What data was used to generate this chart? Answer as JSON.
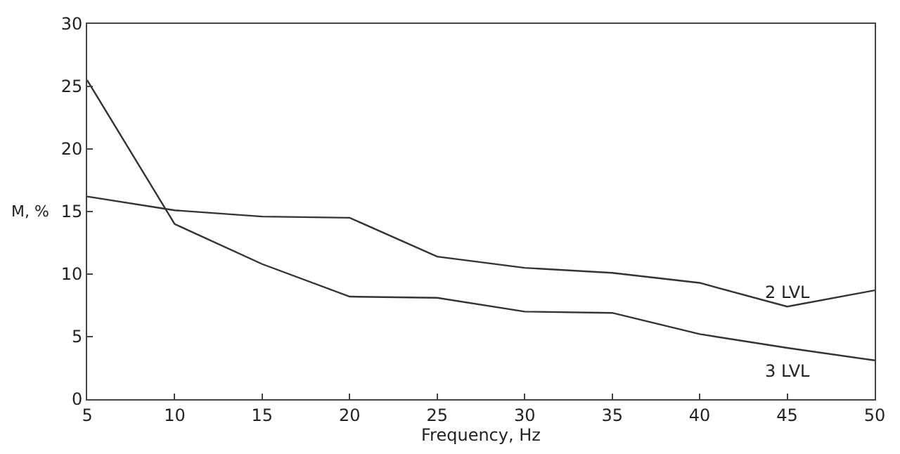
{
  "chart_data": {
    "type": "line",
    "xlabel": "Frequency, Hz",
    "ylabel": "M, %",
    "x": [
      5,
      10,
      15,
      20,
      25,
      30,
      35,
      40,
      45,
      50
    ],
    "series": [
      {
        "name": "2 LVL",
        "color": "#333333",
        "values": [
          16.2,
          15.1,
          14.6,
          14.5,
          11.4,
          10.5,
          10.1,
          9.3,
          7.4,
          8.7
        ]
      },
      {
        "name": "3 LVL",
        "color": "#333333",
        "values": [
          25.5,
          14.0,
          10.8,
          8.2,
          8.1,
          7.0,
          6.9,
          5.2,
          4.1,
          3.1
        ]
      }
    ],
    "xlim": [
      5,
      50
    ],
    "xticks": [
      5,
      10,
      15,
      20,
      25,
      30,
      35,
      40,
      45,
      50
    ],
    "ylim": [
      0,
      30
    ],
    "yticks": [
      0,
      5,
      10,
      15,
      20,
      25,
      30
    ],
    "marker": "none",
    "line_style": "solid"
  }
}
